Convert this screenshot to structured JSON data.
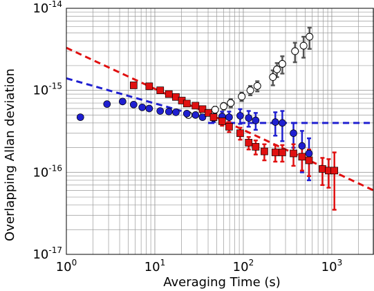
{
  "chart_data": {
    "type": "scatter",
    "xlabel": "Averaging Time (s)",
    "ylabel": "Overlapping Allan deviation",
    "x_scale": "log",
    "y_scale": "log",
    "xlim": [
      1,
      3000
    ],
    "ylim": [
      1e-17,
      1e-14
    ],
    "grid": true,
    "x_ticks": [
      {
        "value": 1,
        "base": "10",
        "exp": "0"
      },
      {
        "value": 10,
        "base": "10",
        "exp": "1"
      },
      {
        "value": 100,
        "base": "10",
        "exp": "2"
      },
      {
        "value": 1000,
        "base": "10",
        "exp": "3"
      }
    ],
    "y_ticks": [
      {
        "value": 1e-17,
        "base": "10",
        "exp": "-17"
      },
      {
        "value": 1e-16,
        "base": "10",
        "exp": "-16"
      },
      {
        "value": 1e-15,
        "base": "10",
        "exp": "-15"
      },
      {
        "value": 1e-14,
        "base": "10",
        "exp": "-14"
      }
    ],
    "series": [
      {
        "marker": "circle-open",
        "color": "#555555",
        "fill": "#ffffff",
        "points": [
          {
            "x": 24,
            "y": 5e-16
          },
          {
            "x": 36,
            "y": 5.2e-16,
            "err": 4e-17
          },
          {
            "x": 48,
            "y": 5.8e-16,
            "err": 5e-17
          },
          {
            "x": 60,
            "y": 6.4e-16,
            "err": 6e-17
          },
          {
            "x": 72,
            "y": 7e-16,
            "err": 8e-17
          },
          {
            "x": 96,
            "y": 8.4e-16,
            "err": 1e-16
          },
          {
            "x": 120,
            "y": 1e-15,
            "err": 1.3e-16
          },
          {
            "x": 144,
            "y": 1.13e-15,
            "err": 1.6e-16
          },
          {
            "x": 216,
            "y": 1.45e-15,
            "err": 3e-16
          },
          {
            "x": 240,
            "y": 1.8e-15,
            "err": 3.5e-16
          },
          {
            "x": 276,
            "y": 2.1e-15,
            "err": 5e-16
          },
          {
            "x": 384,
            "y": 3e-15,
            "err": 8e-16
          },
          {
            "x": 480,
            "y": 3.5e-15,
            "err": 1e-15
          },
          {
            "x": 560,
            "y": 4.5e-15,
            "err": 1.3e-15
          }
        ]
      },
      {
        "marker": "circle",
        "color": "#1f1fd0",
        "points": [
          {
            "x": 1.44,
            "y": 4.7e-16
          },
          {
            "x": 2.88,
            "y": 6.8e-16
          },
          {
            "x": 4.32,
            "y": 7.3e-16
          },
          {
            "x": 5.76,
            "y": 6.7e-16
          },
          {
            "x": 7.2,
            "y": 6.2e-16
          },
          {
            "x": 8.64,
            "y": 6e-16
          },
          {
            "x": 11.5,
            "y": 5.6e-16
          },
          {
            "x": 14.4,
            "y": 5.5e-16
          },
          {
            "x": 17.3,
            "y": 5.4e-16
          },
          {
            "x": 23.0,
            "y": 5.2e-16
          },
          {
            "x": 28.8,
            "y": 5e-16
          },
          {
            "x": 34.6,
            "y": 4.7e-16
          },
          {
            "x": 46.1,
            "y": 4.6e-16,
            "err": 5e-17
          },
          {
            "x": 57.6,
            "y": 4.8e-16,
            "err": 7e-17
          },
          {
            "x": 69.1,
            "y": 4.7e-16,
            "err": 8e-17
          },
          {
            "x": 92.2,
            "y": 4.9e-16,
            "err": 1e-16
          },
          {
            "x": 115,
            "y": 4.6e-16,
            "err": 1e-16
          },
          {
            "x": 138,
            "y": 4.3e-16,
            "err": 1e-16
          },
          {
            "x": 230,
            "y": 4.1e-16,
            "err": 1.3e-16
          },
          {
            "x": 276,
            "y": 4e-16,
            "err": 1.6e-16
          },
          {
            "x": 369,
            "y": 3e-16,
            "err": 1e-16
          },
          {
            "x": 461,
            "y": 2.1e-16,
            "err": 1.1e-16
          },
          {
            "x": 553,
            "y": 1.7e-16,
            "err": 9e-17
          }
        ]
      },
      {
        "marker": "square",
        "color": "#e01010",
        "points": [
          {
            "x": 5.76,
            "y": 1.15e-15
          },
          {
            "x": 8.64,
            "y": 1.12e-15
          },
          {
            "x": 11.5,
            "y": 1e-15
          },
          {
            "x": 14.4,
            "y": 9e-16
          },
          {
            "x": 17.3,
            "y": 8.3e-16
          },
          {
            "x": 20.2,
            "y": 7.5e-16
          },
          {
            "x": 23.0,
            "y": 6.9e-16
          },
          {
            "x": 28.8,
            "y": 6.5e-16
          },
          {
            "x": 34.6,
            "y": 5.9e-16
          },
          {
            "x": 40.3,
            "y": 5.3e-16
          },
          {
            "x": 46.1,
            "y": 4.7e-16
          },
          {
            "x": 57.6,
            "y": 4.2e-16,
            "err": 5e-17
          },
          {
            "x": 69.1,
            "y": 3.6e-16,
            "err": 5e-17
          },
          {
            "x": 92.2,
            "y": 3e-16,
            "err": 5e-17
          },
          {
            "x": 115,
            "y": 2.3e-16,
            "err": 4e-17
          },
          {
            "x": 138,
            "y": 2.05e-16,
            "err": 4e-17
          },
          {
            "x": 173,
            "y": 1.8e-16,
            "err": 4e-17
          },
          {
            "x": 230,
            "y": 1.75e-16,
            "err": 4e-17
          },
          {
            "x": 276,
            "y": 1.75e-16,
            "err": 4e-17
          },
          {
            "x": 369,
            "y": 1.7e-16,
            "err": 5e-17
          },
          {
            "x": 461,
            "y": 1.55e-16,
            "err": 5e-17
          },
          {
            "x": 553,
            "y": 1.4e-16,
            "err": 5e-17
          },
          {
            "x": 784,
            "y": 1.1e-16,
            "err": 4e-17
          },
          {
            "x": 922,
            "y": 1.05e-16,
            "err": 4e-17
          },
          {
            "x": 1070,
            "y": 1.05e-16,
            "err": 7e-17
          }
        ]
      }
    ],
    "fit_lines": [
      {
        "color": "#e01010",
        "style": "dashed",
        "x": [
          1,
          3000
        ],
        "y": [
          3.3e-15,
          6e-17
        ]
      },
      {
        "color": "#1f1fd0",
        "style": "dashed",
        "x": [
          1,
          20
        ],
        "y": [
          1.4e-15,
          5.6e-16
        ]
      },
      {
        "color": "#1f1fd0",
        "style": "dashed",
        "x": [
          40,
          3000
        ],
        "y": [
          4e-16,
          4e-16
        ]
      }
    ]
  }
}
